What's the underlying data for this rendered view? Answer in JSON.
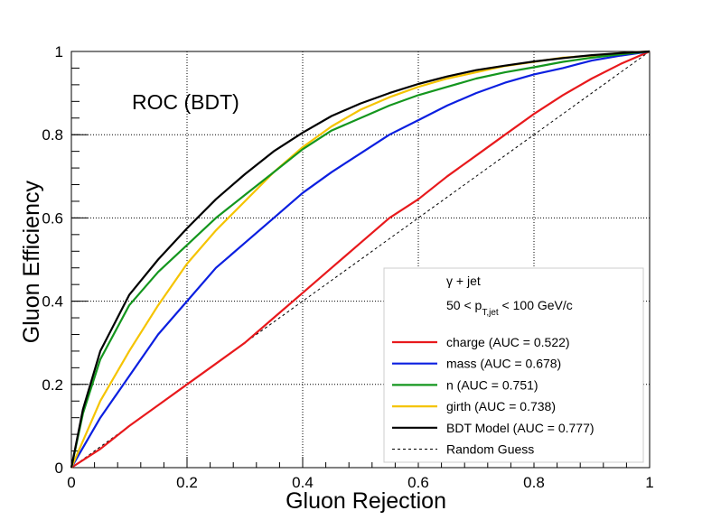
{
  "chart_data": {
    "type": "line",
    "title": "ROC (BDT)",
    "xlabel": "Gluon Rejection",
    "ylabel": "Gluon Efficiency",
    "xlim": [
      0,
      1
    ],
    "ylim": [
      0,
      1
    ],
    "xticks": [
      "0",
      "0.2",
      "0.4",
      "0.6",
      "0.8",
      "1"
    ],
    "yticks": [
      "0",
      "0.2",
      "0.4",
      "0.6",
      "0.8",
      "1"
    ],
    "grid": true,
    "legend_position": "bottom-right",
    "legend_header": {
      "line1": "γ + jet",
      "line2_prefix": "50 < p",
      "line2_sub": "T,jet",
      "line2_suffix": " < 100 GeV/c"
    },
    "series": [
      {
        "name": "charge (AUC = 0.522)",
        "color": "#e8191c",
        "style": "solid",
        "x": [
          0,
          0.05,
          0.1,
          0.15,
          0.2,
          0.25,
          0.3,
          0.35,
          0.4,
          0.45,
          0.5,
          0.55,
          0.6,
          0.65,
          0.7,
          0.75,
          0.8,
          0.85,
          0.9,
          0.95,
          1
        ],
        "y": [
          0,
          0.045,
          0.1,
          0.15,
          0.2,
          0.25,
          0.3,
          0.36,
          0.42,
          0.48,
          0.54,
          0.6,
          0.645,
          0.7,
          0.75,
          0.8,
          0.85,
          0.895,
          0.935,
          0.97,
          1
        ]
      },
      {
        "name": "mass (AUC = 0.678)",
        "color": "#0b1fe0",
        "style": "solid",
        "x": [
          0,
          0.05,
          0.1,
          0.15,
          0.2,
          0.25,
          0.3,
          0.35,
          0.4,
          0.45,
          0.5,
          0.55,
          0.6,
          0.65,
          0.7,
          0.75,
          0.8,
          0.85,
          0.9,
          0.95,
          1
        ],
        "y": [
          0,
          0.12,
          0.22,
          0.32,
          0.4,
          0.48,
          0.54,
          0.6,
          0.66,
          0.71,
          0.755,
          0.8,
          0.835,
          0.87,
          0.9,
          0.925,
          0.945,
          0.96,
          0.978,
          0.99,
          1
        ]
      },
      {
        "name": "n (AUC = 0.751)",
        "color": "#14961e",
        "style": "solid",
        "x": [
          0,
          0.02,
          0.05,
          0.1,
          0.15,
          0.2,
          0.25,
          0.3,
          0.35,
          0.4,
          0.45,
          0.5,
          0.55,
          0.6,
          0.65,
          0.7,
          0.75,
          0.8,
          0.85,
          0.9,
          0.95,
          1
        ],
        "y": [
          0,
          0.13,
          0.26,
          0.39,
          0.47,
          0.535,
          0.6,
          0.655,
          0.71,
          0.765,
          0.81,
          0.84,
          0.87,
          0.895,
          0.915,
          0.935,
          0.95,
          0.962,
          0.975,
          0.985,
          0.993,
          1
        ]
      },
      {
        "name": "girth (AUC = 0.738)",
        "color": "#f5c400",
        "style": "solid",
        "x": [
          0,
          0.05,
          0.1,
          0.15,
          0.2,
          0.25,
          0.3,
          0.35,
          0.4,
          0.45,
          0.5,
          0.55,
          0.6,
          0.65,
          0.7,
          0.75,
          0.8,
          0.85,
          0.9,
          0.95,
          1
        ],
        "y": [
          0,
          0.16,
          0.28,
          0.39,
          0.49,
          0.57,
          0.64,
          0.71,
          0.77,
          0.82,
          0.86,
          0.89,
          0.915,
          0.935,
          0.95,
          0.965,
          0.975,
          0.985,
          0.99,
          0.996,
          1
        ]
      },
      {
        "name": "BDT Model (AUC = 0.777)",
        "color": "#000000",
        "style": "solid",
        "x": [
          0,
          0.02,
          0.05,
          0.1,
          0.15,
          0.2,
          0.25,
          0.3,
          0.35,
          0.4,
          0.45,
          0.5,
          0.55,
          0.6,
          0.65,
          0.7,
          0.75,
          0.8,
          0.85,
          0.9,
          0.95,
          1
        ],
        "y": [
          0,
          0.14,
          0.28,
          0.415,
          0.5,
          0.575,
          0.645,
          0.705,
          0.76,
          0.805,
          0.845,
          0.875,
          0.9,
          0.922,
          0.94,
          0.955,
          0.966,
          0.976,
          0.984,
          0.991,
          0.996,
          1
        ]
      },
      {
        "name": "Random Guess",
        "color": "#000000",
        "style": "dashed",
        "x": [
          0,
          1
        ],
        "y": [
          0,
          1
        ]
      }
    ]
  }
}
